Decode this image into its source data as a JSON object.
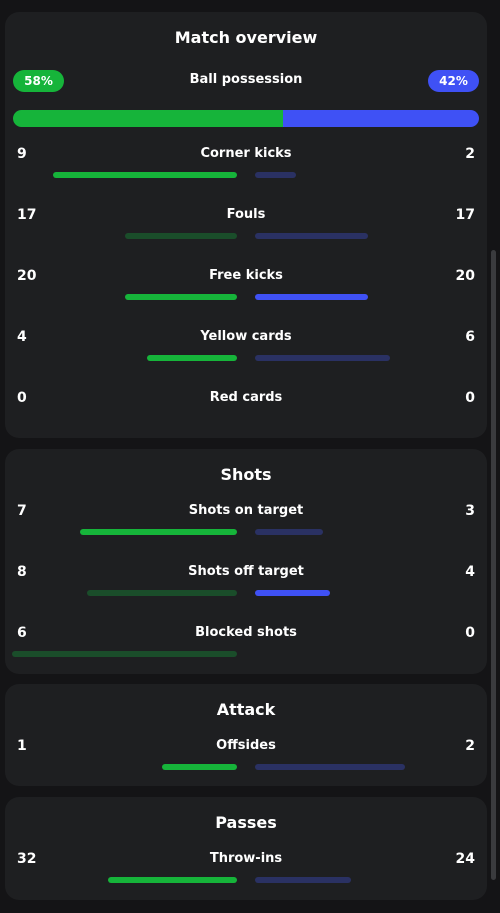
{
  "colors": {
    "home": "#16b43a",
    "home_dim": "#1a4d2a",
    "away": "#3f51f5",
    "away_dim": "#2a3163"
  },
  "overview": {
    "title": "Match overview",
    "possession": {
      "label": "Ball possession",
      "home": "58%",
      "away": "42%",
      "home_value": 58,
      "away_value": 42
    },
    "stats": [
      {
        "label": "Corner kicks",
        "home": "9",
        "away": "2",
        "home_value": 9,
        "away_value": 2,
        "highlight": "home"
      },
      {
        "label": "Fouls",
        "home": "17",
        "away": "17",
        "home_value": 17,
        "away_value": 17,
        "highlight": "none"
      },
      {
        "label": "Free kicks",
        "home": "20",
        "away": "20",
        "home_value": 20,
        "away_value": 20,
        "highlight": "both"
      },
      {
        "label": "Yellow cards",
        "home": "4",
        "away": "6",
        "home_value": 4,
        "away_value": 6,
        "highlight": "home"
      },
      {
        "label": "Red cards",
        "home": "0",
        "away": "0",
        "home_value": 0,
        "away_value": 0,
        "highlight": "none"
      }
    ]
  },
  "shots": {
    "title": "Shots",
    "stats": [
      {
        "label": "Shots on target",
        "home": "7",
        "away": "3",
        "home_value": 7,
        "away_value": 3,
        "highlight": "home"
      },
      {
        "label": "Shots off target",
        "home": "8",
        "away": "4",
        "home_value": 8,
        "away_value": 4,
        "highlight": "away"
      },
      {
        "label": "Blocked shots",
        "home": "6",
        "away": "0",
        "home_value": 6,
        "away_value": 0,
        "highlight": "none"
      }
    ]
  },
  "attack": {
    "title": "Attack",
    "stats": [
      {
        "label": "Offsides",
        "home": "1",
        "away": "2",
        "home_value": 1,
        "away_value": 2,
        "highlight": "home"
      }
    ]
  },
  "passes": {
    "title": "Passes",
    "stats": [
      {
        "label": "Throw-ins",
        "home": "32",
        "away": "24",
        "home_value": 32,
        "away_value": 24,
        "highlight": "home"
      }
    ]
  }
}
